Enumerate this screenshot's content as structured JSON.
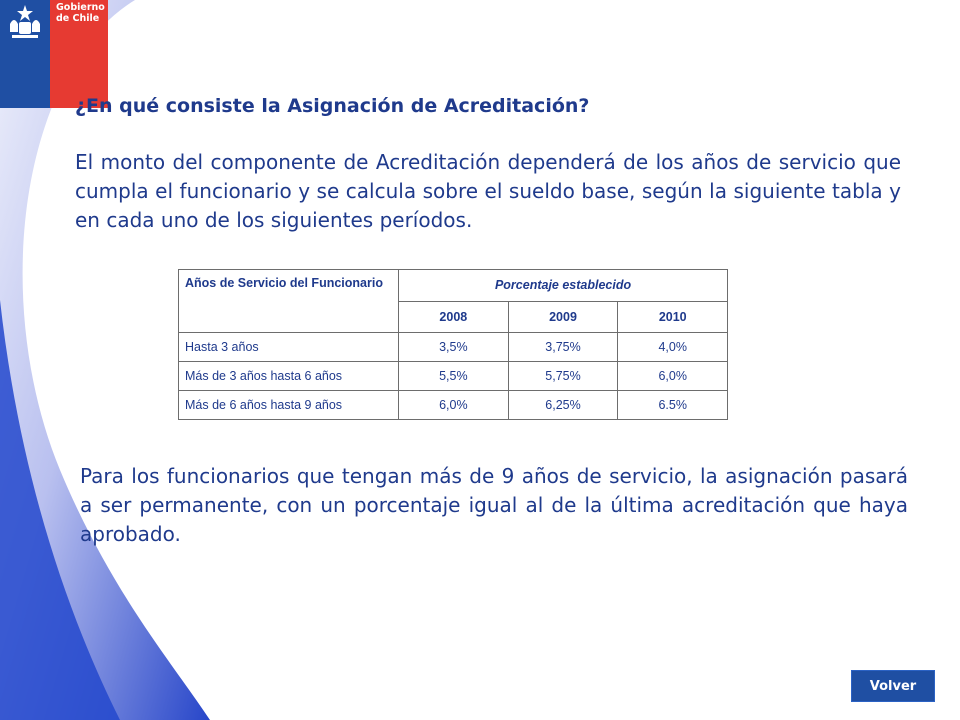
{
  "logo": {
    "line1": "Gobierno",
    "line2": "de Chile"
  },
  "title": "¿En qué consiste la Asignación de Acreditación?",
  "paragraph1": "El monto del componente de Acreditación dependerá de los años de servicio que cumpla el funcionario y se calcula sobre el sueldo base, según la siguiente tabla y en cada uno de los siguientes períodos.",
  "table": {
    "col_header_left": "Años de Servicio del Funcionario",
    "col_header_group": "Porcentaje establecido",
    "years": [
      "2008",
      "2009",
      "2010"
    ],
    "rows": [
      {
        "label": "Hasta 3 años",
        "values": [
          "3,5%",
          "3,75%",
          "4,0%"
        ]
      },
      {
        "label": "Más de 3 años hasta 6 años",
        "values": [
          "5,5%",
          "5,75%",
          "6,0%"
        ]
      },
      {
        "label": "Más de 6 años hasta 9 años",
        "values": [
          "6,0%",
          "6,25%",
          "6.5%"
        ]
      }
    ]
  },
  "paragraph2": "Para los funcionarios que tengan más de 9 años de servicio, la asignación pasará a ser permanente, con un porcentaje igual al de la última acreditación que haya aprobado.",
  "volver_label": "Volver",
  "colors": {
    "text_blue": "#1f3a8c",
    "logo_blue": "#1f4fa3",
    "logo_red": "#e63a32"
  }
}
